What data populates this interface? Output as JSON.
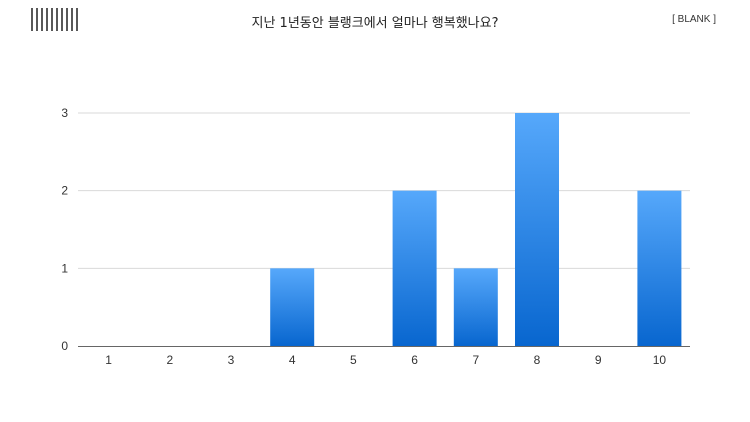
{
  "header": {
    "title": "지난 1년동안 블랭크에서 얼마나 행복했나요?",
    "tag": "[ BLANK ]"
  },
  "colors": {
    "bar_top": "#56a8fb",
    "bar_bottom": "#0866cf",
    "grid": "#d9d9d9",
    "axis": "#666666"
  },
  "chart_data": {
    "type": "bar",
    "title": "지난 1년동안 블랭크에서 얼마나 행복했나요?",
    "xlabel": "",
    "ylabel": "",
    "categories": [
      "1",
      "2",
      "3",
      "4",
      "5",
      "6",
      "7",
      "8",
      "9",
      "10"
    ],
    "values": [
      0,
      0,
      0,
      1,
      0,
      2,
      1,
      3,
      0,
      2
    ],
    "ylim": [
      0,
      3
    ],
    "yticks": [
      0,
      1,
      2,
      3
    ],
    "grid": true,
    "legend": "none"
  }
}
